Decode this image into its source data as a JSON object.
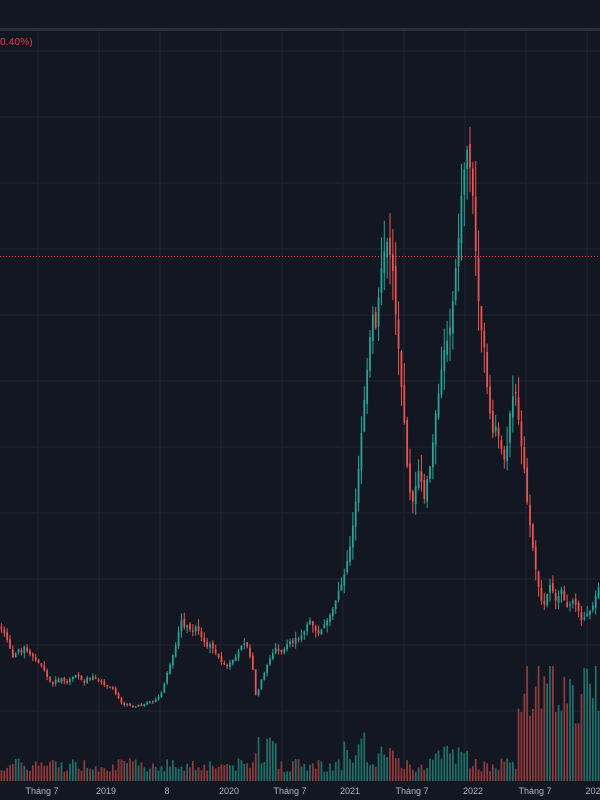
{
  "header": {
    "change_text": "0.40%)"
  },
  "colors": {
    "background": "#131722",
    "grid": "#1f2433",
    "up": "#26a69a",
    "down": "#ef5350",
    "volume_up": "#1f6f68",
    "volume_down": "#8f3a3a",
    "price_line": "#f23645",
    "axis_text": "#b2b5be"
  },
  "chart_data": {
    "type": "candlestick",
    "interval": "weekly",
    "title": "",
    "xlabel": "",
    "ylabel": "",
    "x_ticks": [
      "Tháng 7",
      "2019",
      "8",
      "2020",
      "Tháng 7",
      "2021",
      "Tháng 7",
      "2022",
      "Tháng 7",
      "202"
    ],
    "last_price_line": 0.72,
    "ylim": [
      0,
      1.05
    ],
    "close_series": [
      0.155,
      0.148,
      0.138,
      0.125,
      0.112,
      0.118,
      0.124,
      0.119,
      0.128,
      0.121,
      0.116,
      0.113,
      0.108,
      0.104,
      0.099,
      0.092,
      0.082,
      0.075,
      0.071,
      0.078,
      0.074,
      0.08,
      0.076,
      0.073,
      0.079,
      0.082,
      0.085,
      0.083,
      0.077,
      0.073,
      0.081,
      0.078,
      0.083,
      0.079,
      0.076,
      0.074,
      0.07,
      0.068,
      0.066,
      0.064,
      0.056,
      0.05,
      0.043,
      0.039,
      0.041,
      0.038,
      0.036,
      0.037,
      0.04,
      0.038,
      0.041,
      0.043,
      0.045,
      0.044,
      0.048,
      0.052,
      0.058,
      0.072,
      0.088,
      0.101,
      0.115,
      0.13,
      0.151,
      0.168,
      0.158,
      0.16,
      0.154,
      0.15,
      0.158,
      0.152,
      0.142,
      0.135,
      0.128,
      0.132,
      0.125,
      0.118,
      0.112,
      0.105,
      0.101,
      0.098,
      0.104,
      0.108,
      0.112,
      0.121,
      0.129,
      0.133,
      0.128,
      0.113,
      0.093,
      0.055,
      0.063,
      0.078,
      0.088,
      0.1,
      0.11,
      0.118,
      0.126,
      0.122,
      0.12,
      0.124,
      0.132,
      0.136,
      0.134,
      0.141,
      0.138,
      0.145,
      0.151,
      0.162,
      0.168,
      0.16,
      0.152,
      0.148,
      0.154,
      0.162,
      0.168,
      0.176,
      0.185,
      0.198,
      0.212,
      0.222,
      0.238,
      0.258,
      0.28,
      0.312,
      0.348,
      0.398,
      0.452,
      0.502,
      0.548,
      0.598,
      0.632,
      0.612,
      0.658,
      0.702,
      0.728,
      0.742,
      0.722,
      0.698,
      0.632,
      0.58,
      0.522,
      0.468,
      0.402,
      0.362,
      0.348,
      0.372,
      0.395,
      0.378,
      0.352,
      0.382,
      0.402,
      0.438,
      0.482,
      0.512,
      0.548,
      0.578,
      0.592,
      0.612,
      0.652,
      0.702,
      0.748,
      0.812,
      0.852,
      0.882,
      0.855,
      0.812,
      0.728,
      0.652,
      0.608,
      0.582,
      0.522,
      0.482,
      0.452,
      0.462,
      0.448,
      0.428,
      0.412,
      0.432,
      0.482,
      0.508,
      0.512,
      0.472,
      0.432,
      0.398,
      0.348,
      0.312,
      0.278,
      0.245,
      0.218,
      0.198,
      0.192,
      0.208,
      0.222,
      0.212,
      0.198,
      0.205,
      0.215,
      0.198,
      0.188,
      0.192,
      0.198,
      0.192,
      0.182,
      0.168,
      0.172,
      0.178,
      0.182,
      0.19,
      0.205,
      0.218
    ],
    "y_padding_top": 0.04,
    "y_padding_bottom": 0.115
  }
}
